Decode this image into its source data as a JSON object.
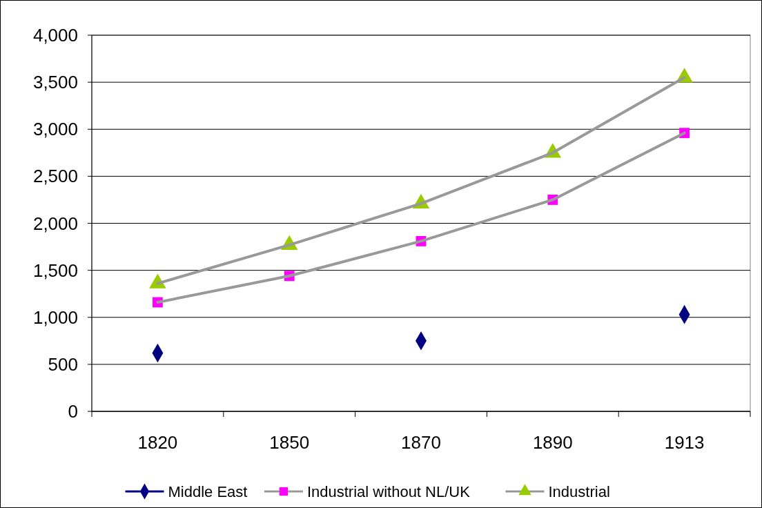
{
  "chart_data": {
    "type": "line",
    "categories": [
      "1820",
      "1850",
      "1870",
      "1890",
      "1913"
    ],
    "series": [
      {
        "name": "Middle East",
        "type": "scatter",
        "color": "#000080",
        "marker": "diamond",
        "values": [
          620,
          null,
          750,
          null,
          1030
        ]
      },
      {
        "name": "Industrial without NL/UK",
        "color": "#ff00ff",
        "marker": "square",
        "values": [
          1160,
          1440,
          1810,
          2250,
          2960
        ]
      },
      {
        "name": "Industrial",
        "color": "#99cc00",
        "marker": "triangle",
        "values": [
          1360,
          1770,
          2210,
          2750,
          3550
        ]
      }
    ],
    "ylim": [
      0,
      4000
    ],
    "yticks": [
      0,
      {
        "value": 500,
        "label": "500"
      },
      {
        "value": 1000,
        "label": "1,000"
      },
      {
        "value": 1500,
        "label": "1,500"
      },
      {
        "value": 2000,
        "label": "2,000"
      },
      {
        "value": 2500,
        "label": "2,500"
      },
      {
        "value": 3000,
        "label": "3,000"
      },
      {
        "value": 3500,
        "label": "3,500"
      },
      {
        "value": 4000,
        "label": "4,000"
      }
    ],
    "grid": "y",
    "legend": "bottom"
  }
}
